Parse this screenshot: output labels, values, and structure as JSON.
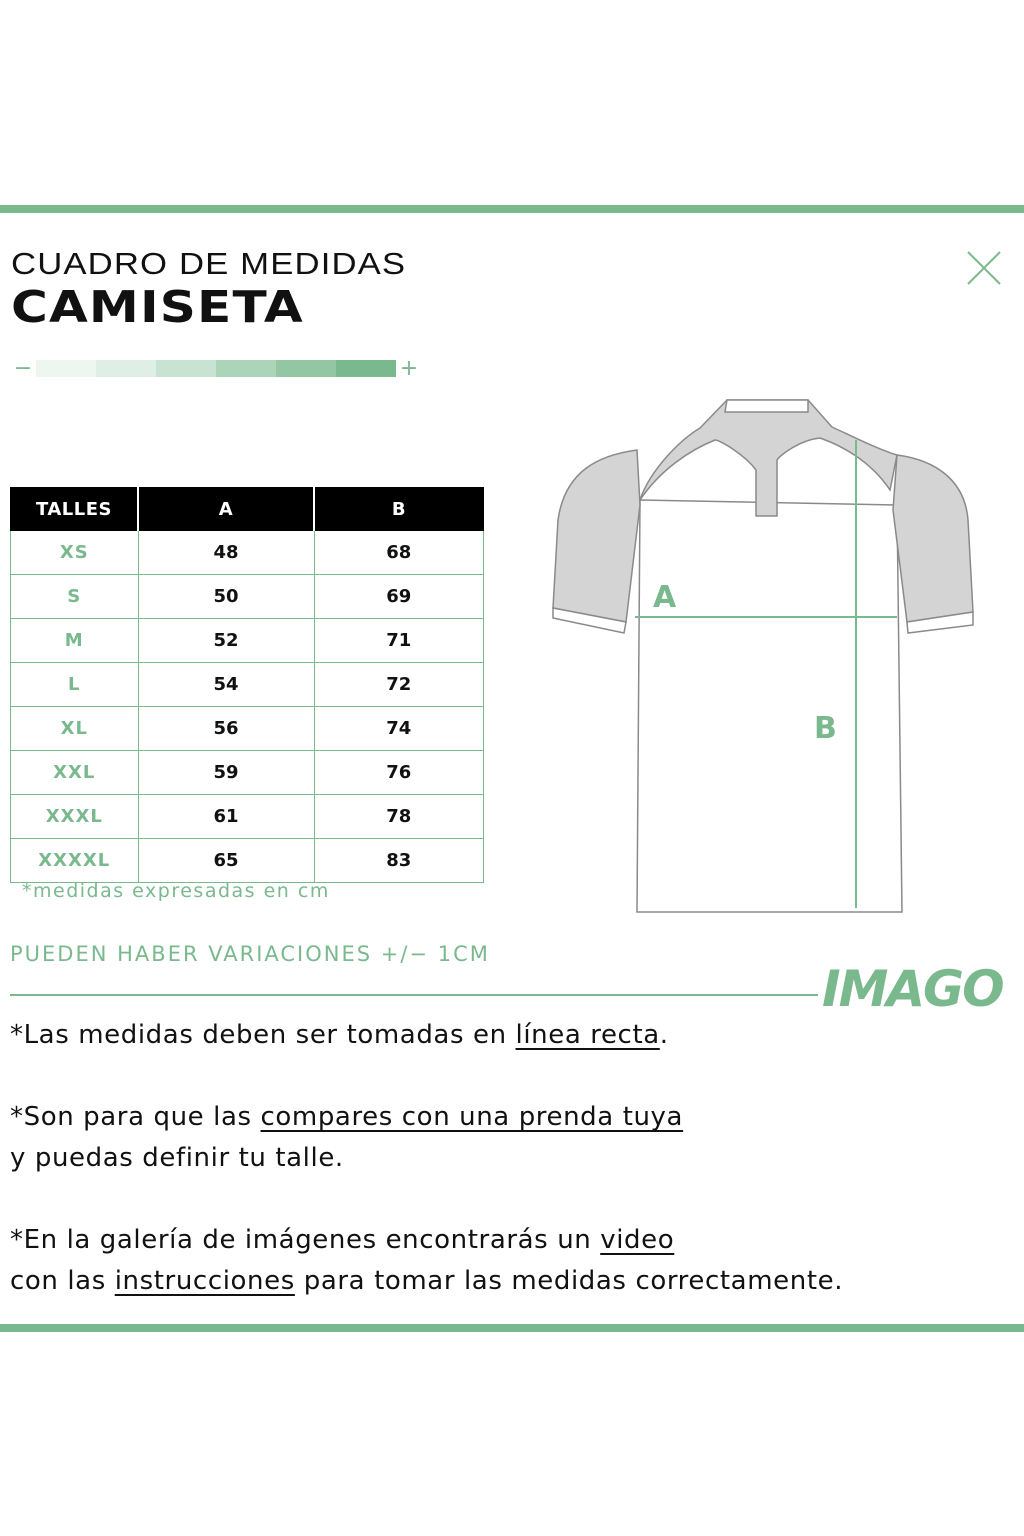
{
  "header": {
    "subtitle": "CUADRO DE MEDIDAS",
    "title": "CAMISETA"
  },
  "close_icon": "close-x-icon",
  "scale": {
    "minus": "−",
    "plus": "+",
    "colors": [
      "#eef6f0",
      "#e0efe5",
      "#c8e3d1",
      "#acd4b8",
      "#93c6a2",
      "#7ab98e"
    ]
  },
  "table": {
    "headers": [
      "TALLES",
      "A",
      "B"
    ],
    "rows": [
      [
        "XS",
        "48",
        "68"
      ],
      [
        "S",
        "50",
        "69"
      ],
      [
        "M",
        "52",
        "71"
      ],
      [
        "L",
        "54",
        "72"
      ],
      [
        "XL",
        "56",
        "74"
      ],
      [
        "XXL",
        "59",
        "76"
      ],
      [
        "XXXL",
        "61",
        "78"
      ],
      [
        "XXXXL",
        "65",
        "83"
      ]
    ]
  },
  "note": "*medidas expresadas en cm",
  "variations": "PUEDEN HABER VARIACIONES +/− 1CM",
  "diagram": {
    "label_a": "A",
    "label_b": "B"
  },
  "logo": "IMAGO",
  "instructions": {
    "l1_pre": "*Las medidas deben ser tomadas en ",
    "l1_link": "línea recta",
    "l1_post": ".",
    "l2_pre": "*Son para que las ",
    "l2_link": "compares con una prenda tuya",
    "l3": "y puedas definir tu talle.",
    "l4_pre": "*En la galería de imágenes encontrarás un ",
    "l4_link": "video",
    "l5_pre": "con las ",
    "l5_link": "instrucciones",
    "l5_post": " para tomar las medidas correctamente."
  },
  "colors": {
    "accent": "#7ab98e",
    "header_bg": "#000000",
    "sleeve_gray": "#d4d4d4"
  }
}
